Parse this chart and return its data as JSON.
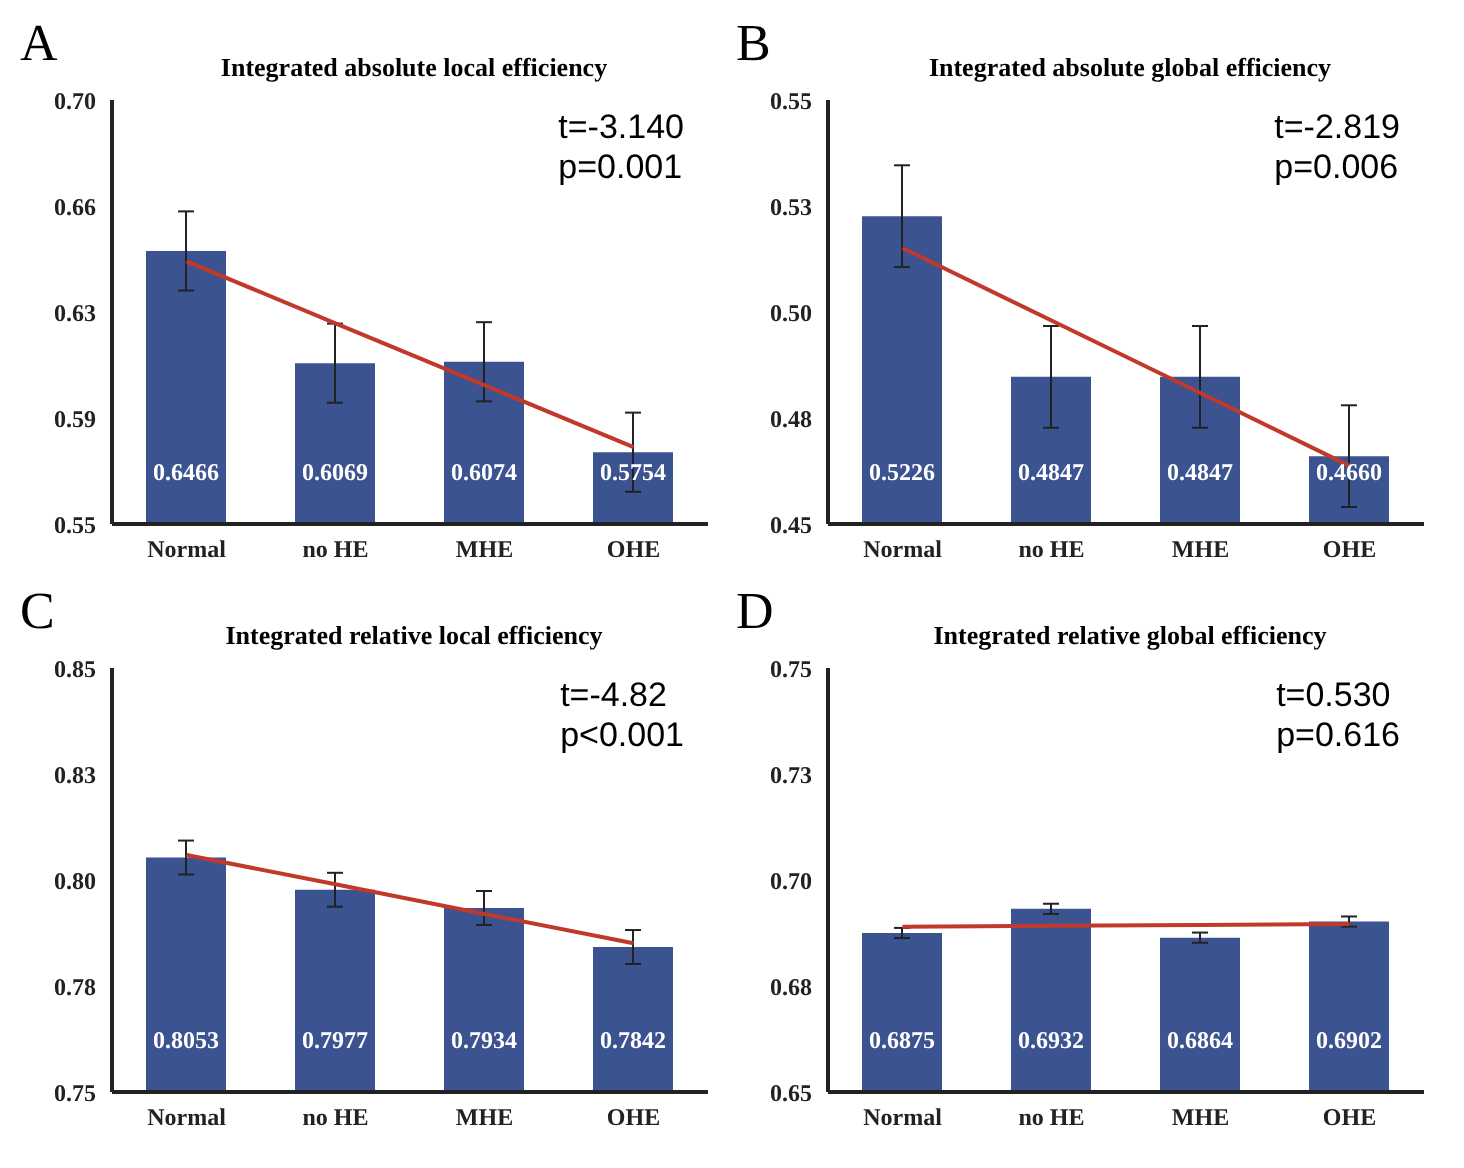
{
  "chart_data": [
    {
      "type": "bar",
      "title": "Integrated absolute local efficiency",
      "annotations": [
        "A",
        "t=-3.140",
        "p=0.001"
      ],
      "categories": [
        "Normal",
        "no HE",
        "MHE",
        "OHE"
      ],
      "series": [
        {
          "color": "#3b5391",
          "values": [
            0.6466,
            0.6069,
            0.6074,
            0.5754
          ],
          "value_labels": [
            "0.6466",
            "0.6069",
            "0.6074",
            "0.5754"
          ],
          "errors": [
            0.014,
            0.014,
            0.014,
            0.014
          ]
        },
        {
          "type": "line",
          "color": "#c0392b",
          "values": [
            0.6429,
            0.621,
            0.5991,
            0.5772
          ]
        }
      ],
      "ylim": [
        0.55,
        0.7
      ],
      "yticks": [
        0.55,
        {
          "value": 0.5875,
          "label": "0.59"
        },
        {
          "value": 0.625,
          "label": "0.63"
        },
        {
          "value": 0.6625,
          "label": "0.66"
        },
        {
          "value": 0.7,
          "label": "0.70"
        }
      ],
      "grid": false,
      "legend": false,
      "marker": "none"
    },
    {
      "type": "bar",
      "title": "Integrated absolute global efficiency",
      "annotations": [
        "B",
        "t=-2.819",
        "p=0.006"
      ],
      "categories": [
        "Normal",
        "no HE",
        "MHE",
        "OHE"
      ],
      "series": [
        {
          "color": "#3b5391",
          "values": [
            0.5226,
            0.4847,
            0.4847,
            0.466
          ],
          "value_labels": [
            "0.5226",
            "0.4847",
            "0.4847",
            "0.4660"
          ],
          "errors": [
            0.012,
            0.012,
            0.012,
            0.012
          ]
        },
        {
          "type": "line",
          "color": "#c0392b",
          "values": [
            0.5151,
            0.498,
            0.4809,
            0.4637
          ]
        }
      ],
      "ylim": [
        0.45,
        0.55
      ],
      "yticks": [
        0.45,
        {
          "value": 0.475,
          "label": "0.48"
        },
        {
          "value": 0.5,
          "label": "0.50"
        },
        {
          "value": 0.525,
          "label": "0.53"
        },
        0.55
      ],
      "grid": false,
      "legend": false,
      "marker": "none"
    },
    {
      "type": "bar",
      "title": "Integrated relative local efficiency",
      "annotations": [
        "C",
        "t=-4.82",
        "p<0.001"
      ],
      "categories": [
        "Normal",
        "no HE",
        "MHE",
        "OHE"
      ],
      "series": [
        {
          "color": "#3b5391",
          "values": [
            0.8053,
            0.7977,
            0.7934,
            0.7842
          ],
          "value_labels": [
            "0.8053",
            "0.7977",
            "0.7934",
            "0.7842"
          ],
          "errors": [
            0.004,
            0.004,
            0.004,
            0.004
          ]
        },
        {
          "type": "line",
          "color": "#c0392b",
          "values": [
            0.8059,
            0.799,
            0.792,
            0.7851
          ]
        }
      ],
      "ylim": [
        0.75,
        0.85
      ],
      "yticks": [
        0.75,
        {
          "value": 0.775,
          "label": "0.78"
        },
        {
          "value": 0.8,
          "label": "0.80"
        },
        {
          "value": 0.825,
          "label": "0.83"
        },
        0.85
      ],
      "grid": false,
      "legend": false,
      "marker": "none"
    },
    {
      "type": "bar",
      "title": "Integrated relative global efficiency",
      "annotations": [
        "D",
        "t=0.530",
        "p=0.616"
      ],
      "categories": [
        "Normal",
        "no HE",
        "MHE",
        "OHE"
      ],
      "series": [
        {
          "color": "#3b5391",
          "values": [
            0.6875,
            0.6932,
            0.6864,
            0.6902
          ],
          "value_labels": [
            "0.6875",
            "0.6932",
            "0.6864",
            "0.6902"
          ],
          "errors": [
            0.0012,
            0.0012,
            0.0012,
            0.0012
          ]
        },
        {
          "type": "line",
          "color": "#c0392b",
          "values": [
            0.689,
            0.6892,
            0.6894,
            0.6896
          ]
        }
      ],
      "ylim": [
        0.65,
        0.75
      ],
      "yticks": [
        0.65,
        {
          "value": 0.675,
          "label": "0.68"
        },
        {
          "value": 0.7,
          "label": "0.70"
        },
        {
          "value": 0.725,
          "label": "0.73"
        },
        0.75
      ],
      "grid": false,
      "legend": false,
      "marker": "none"
    }
  ]
}
